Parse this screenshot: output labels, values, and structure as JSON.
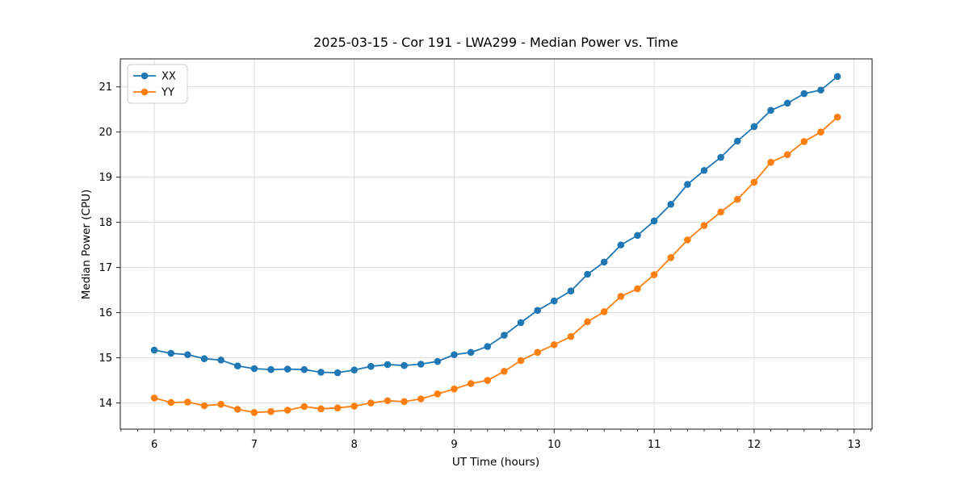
{
  "chart_data": {
    "type": "line",
    "title": "2025-03-15 - Cor 191 - LWA299 - Median Power vs. Time",
    "xlabel": "UT Time (hours)",
    "ylabel": "Median Power (CPU)",
    "xlim": [
      5.66,
      13.18
    ],
    "ylim": [
      13.42,
      21.62
    ],
    "xticks": [
      6,
      7,
      8,
      9,
      10,
      11,
      12,
      13
    ],
    "yticks": [
      14,
      15,
      16,
      17,
      18,
      19,
      20,
      21
    ],
    "x_minor_step": 0.166667,
    "grid": true,
    "legend_position": "upper left",
    "grid_color": "#d9d9d9",
    "spine_color": "#1a1a1a",
    "x": [
      6.0,
      6.1667,
      6.3333,
      6.5,
      6.6667,
      6.8333,
      7.0,
      7.1667,
      7.3333,
      7.5,
      7.6667,
      7.8333,
      8.0,
      8.1667,
      8.3333,
      8.5,
      8.6667,
      8.8333,
      9.0,
      9.1667,
      9.3333,
      9.5,
      9.6667,
      9.8333,
      10.0,
      10.1667,
      10.3333,
      10.5,
      10.6667,
      10.8333,
      11.0,
      11.1667,
      11.3333,
      11.5,
      11.6667,
      11.8333,
      12.0,
      12.1667,
      12.3333,
      12.5,
      12.6667,
      12.8333
    ],
    "series": [
      {
        "name": "XX",
        "color": "#1f77b4",
        "values": [
          15.17,
          15.1,
          15.07,
          14.98,
          14.95,
          14.82,
          14.76,
          14.74,
          14.75,
          14.74,
          14.68,
          14.67,
          14.73,
          14.81,
          14.85,
          14.83,
          14.86,
          14.92,
          15.07,
          15.12,
          15.25,
          15.5,
          15.78,
          16.05,
          16.26,
          16.48,
          16.85,
          17.12,
          17.5,
          17.71,
          18.03,
          18.4,
          18.84,
          19.15,
          19.44,
          19.8,
          20.12,
          20.48,
          20.64,
          20.85,
          20.93,
          21.23
        ]
      },
      {
        "name": "YY",
        "color": "#ff7f0e",
        "values": [
          14.11,
          14.01,
          14.02,
          13.94,
          13.97,
          13.86,
          13.79,
          13.81,
          13.84,
          13.92,
          13.87,
          13.89,
          13.93,
          14.0,
          14.05,
          14.03,
          14.09,
          14.2,
          14.31,
          14.43,
          14.5,
          14.7,
          14.94,
          15.12,
          15.29,
          15.47,
          15.8,
          16.02,
          16.36,
          16.53,
          16.84,
          17.22,
          17.61,
          17.93,
          18.23,
          18.51,
          18.89,
          19.33,
          19.5,
          19.79,
          20.0,
          20.33
        ]
      }
    ]
  }
}
